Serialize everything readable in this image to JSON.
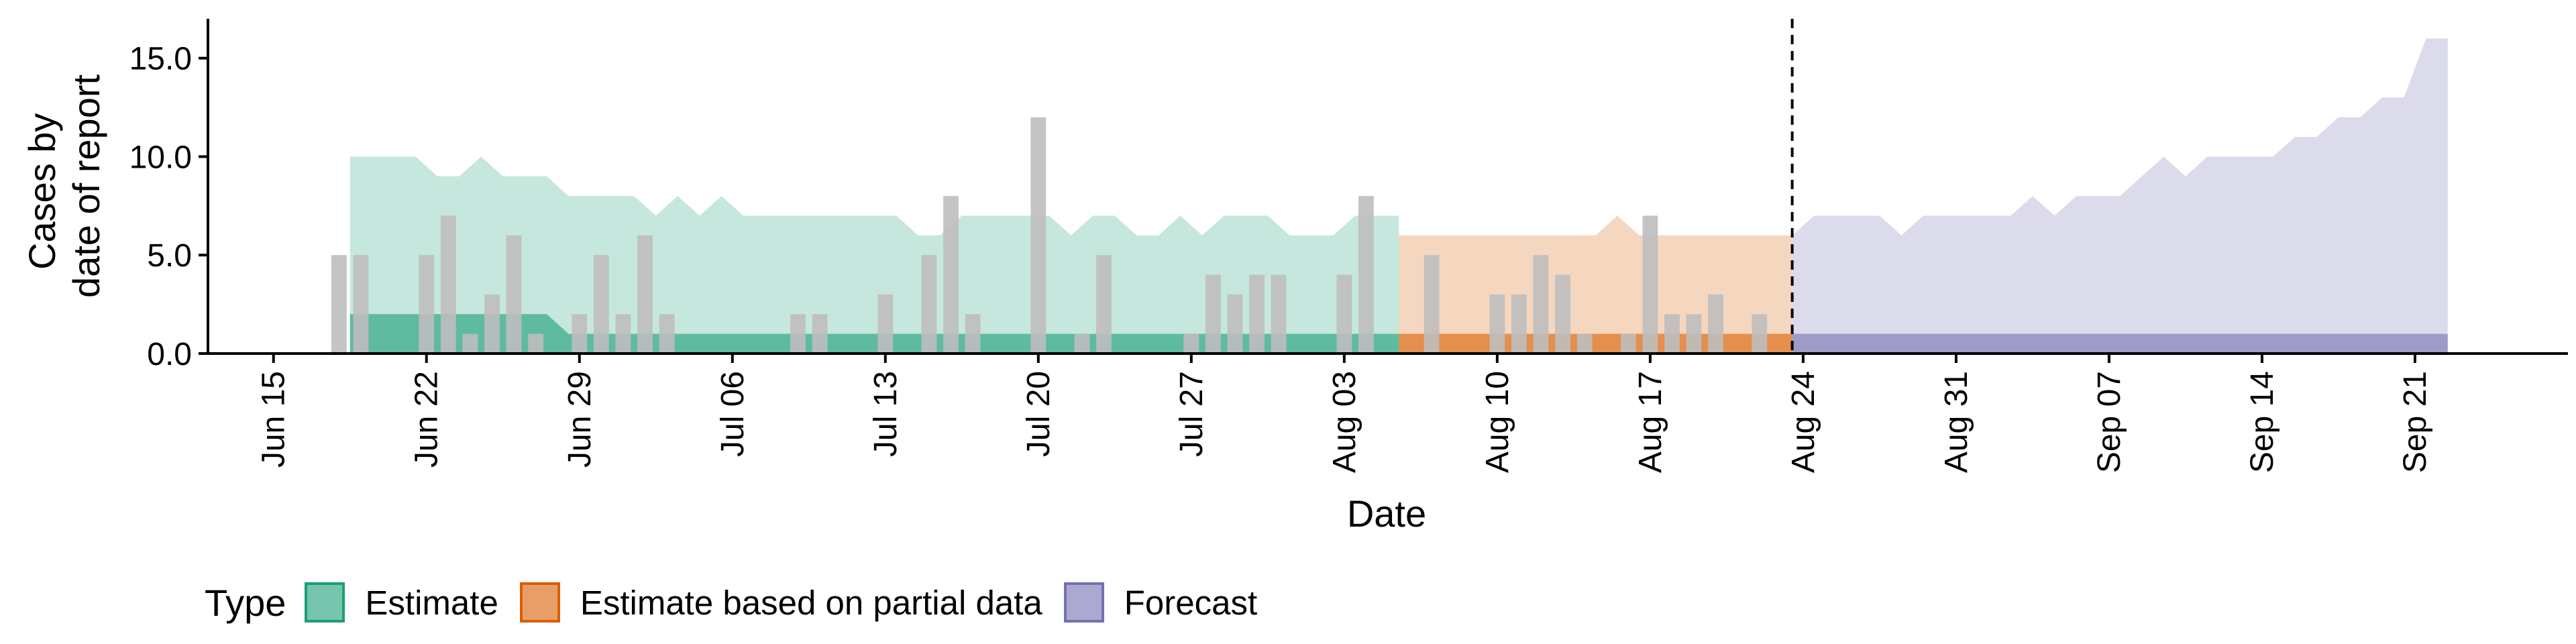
{
  "chart_data": {
    "type": "bar",
    "title": "",
    "xlabel": "Date",
    "ylabel": [
      "Cases by",
      "date of report"
    ],
    "ylim": [
      0,
      17
    ],
    "yticks": [
      0,
      5,
      10,
      15
    ],
    "ytick_labels": [
      "0.0",
      "5.0",
      "10.0",
      "15.0"
    ],
    "xlim": [
      "2020-06-12",
      "2020-09-28"
    ],
    "xticks": [
      "2020-06-15",
      "2020-06-22",
      "2020-06-29",
      "2020-07-06",
      "2020-07-13",
      "2020-07-20",
      "2020-07-27",
      "2020-08-03",
      "2020-08-10",
      "2020-08-17",
      "2020-08-24",
      "2020-08-31",
      "2020-09-07",
      "2020-09-14",
      "2020-09-21"
    ],
    "xtick_labels": [
      "Jun 15",
      "Jun 22",
      "Jun 29",
      "Jul 06",
      "Jul 13",
      "Jul 20",
      "Jul 27",
      "Aug 03",
      "Aug 10",
      "Aug 17",
      "Aug 24",
      "Aug 31",
      "Sep 07",
      "Sep 14",
      "Sep 21"
    ],
    "forecast_date": "2020-08-23",
    "grid": false,
    "legend_position": "bottom-left",
    "observed_cases": {
      "dates": [
        "2020-06-18",
        "2020-06-19",
        "2020-06-20",
        "2020-06-21",
        "2020-06-22",
        "2020-06-23",
        "2020-06-24",
        "2020-06-25",
        "2020-06-26",
        "2020-06-27",
        "2020-06-28",
        "2020-06-29",
        "2020-06-30",
        "2020-07-01",
        "2020-07-02",
        "2020-07-03",
        "2020-07-04",
        "2020-07-05",
        "2020-07-06",
        "2020-07-07",
        "2020-07-08",
        "2020-07-09",
        "2020-07-10",
        "2020-07-11",
        "2020-07-12",
        "2020-07-13",
        "2020-07-14",
        "2020-07-15",
        "2020-07-16",
        "2020-07-17",
        "2020-07-18",
        "2020-07-19",
        "2020-07-20",
        "2020-07-21",
        "2020-07-22",
        "2020-07-23",
        "2020-07-24",
        "2020-07-25",
        "2020-07-26",
        "2020-07-27",
        "2020-07-28",
        "2020-07-29",
        "2020-07-30",
        "2020-07-31",
        "2020-08-01",
        "2020-08-02",
        "2020-08-03",
        "2020-08-04",
        "2020-08-05",
        "2020-08-06",
        "2020-08-07",
        "2020-08-08",
        "2020-08-09",
        "2020-08-10",
        "2020-08-11",
        "2020-08-12",
        "2020-08-13",
        "2020-08-14",
        "2020-08-15",
        "2020-08-16",
        "2020-08-17",
        "2020-08-18",
        "2020-08-19",
        "2020-08-20",
        "2020-08-21",
        "2020-08-22",
        "2020-08-23"
      ],
      "values": [
        5,
        5,
        0,
        0,
        5,
        7,
        1,
        3,
        6,
        1,
        0,
        2,
        5,
        2,
        6,
        2,
        0,
        0,
        0,
        0,
        0,
        2,
        2,
        0,
        0,
        3,
        0,
        5,
        8,
        2,
        0,
        0,
        12,
        0,
        1,
        5,
        0,
        0,
        0,
        1,
        4,
        3,
        4,
        4,
        0,
        0,
        4,
        8,
        0,
        0,
        5,
        0,
        0,
        3,
        3,
        5,
        4,
        1,
        0,
        1,
        7,
        2,
        2,
        3,
        0,
        2,
        0
      ],
      "color": "#BEBEBE"
    },
    "ribbons": [
      {
        "name": "Estimate",
        "color": "#1B9E77",
        "start": "2020-06-19",
        "end": "2020-08-05",
        "outer_upper": [
          10,
          10,
          10,
          10,
          9,
          9,
          10,
          9,
          9,
          9,
          8,
          8,
          8,
          8,
          7,
          8,
          7,
          8,
          7,
          7,
          7,
          7,
          7,
          7,
          7,
          7,
          6,
          6,
          7,
          7,
          7,
          7,
          7,
          6,
          7,
          7,
          6,
          6,
          7,
          6,
          7,
          7,
          7,
          6,
          6,
          6,
          7,
          7
        ],
        "inner_upper": [
          2,
          2,
          2,
          2,
          2,
          2,
          2,
          2,
          2,
          2,
          1,
          1,
          1,
          1,
          1,
          1,
          1,
          1,
          1,
          1,
          1,
          1,
          1,
          1,
          1,
          1,
          1,
          1,
          1,
          1,
          1,
          1,
          1,
          1,
          1,
          1,
          1,
          1,
          1,
          1,
          1,
          1,
          1,
          1,
          1,
          1,
          1,
          1
        ],
        "outer_opacity": 0.25,
        "inner_opacity": 0.6
      },
      {
        "name": "Estimate based on partial data",
        "color": "#D95F02",
        "start": "2020-08-06",
        "end": "2020-08-23",
        "outer_upper": [
          6,
          6,
          6,
          6,
          6,
          6,
          6,
          6,
          6,
          6,
          7,
          6,
          6,
          6,
          6,
          6,
          6,
          6
        ],
        "inner_upper": [
          1,
          1,
          1,
          1,
          1,
          1,
          1,
          1,
          1,
          1,
          1,
          1,
          1,
          1,
          1,
          1,
          1,
          1
        ],
        "outer_opacity": 0.25,
        "inner_opacity": 0.6
      },
      {
        "name": "Forecast",
        "color": "#7570B3",
        "start": "2020-08-24",
        "end": "2020-09-22",
        "outer_upper": [
          6,
          7,
          7,
          7,
          7,
          6,
          7,
          7,
          7,
          7,
          7,
          8,
          7,
          8,
          8,
          8,
          9,
          10,
          9,
          10,
          10,
          10,
          10,
          11,
          11,
          12,
          12,
          13,
          13,
          16
        ],
        "inner_upper": [
          1,
          1,
          1,
          1,
          1,
          1,
          1,
          1,
          1,
          1,
          1,
          1,
          1,
          1,
          1,
          1,
          1,
          1,
          1,
          1,
          1,
          1,
          1,
          1,
          1,
          1,
          1,
          1,
          1,
          1
        ],
        "outer_opacity": 0.25,
        "inner_opacity": 0.6
      }
    ]
  },
  "legend": {
    "title": "Type",
    "items": [
      {
        "label": "Estimate",
        "color": "#1B9E77"
      },
      {
        "label": "Estimate based on partial data",
        "color": "#D95F02"
      },
      {
        "label": "Forecast",
        "color": "#7570B3"
      }
    ]
  }
}
